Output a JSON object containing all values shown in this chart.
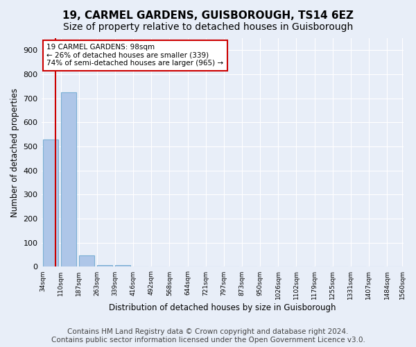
{
  "title": "19, CARMEL GARDENS, GUISBOROUGH, TS14 6EZ",
  "subtitle": "Size of property relative to detached houses in Guisborough",
  "xlabel": "Distribution of detached houses by size in Guisborough",
  "ylabel": "Number of detached properties",
  "bin_labels": [
    "34sqm",
    "110sqm",
    "187sqm",
    "263sqm",
    "339sqm",
    "416sqm",
    "492sqm",
    "568sqm",
    "644sqm",
    "721sqm",
    "797sqm",
    "873sqm",
    "950sqm",
    "1026sqm",
    "1102sqm",
    "1179sqm",
    "1255sqm",
    "1331sqm",
    "1407sqm",
    "1484sqm",
    "1560sqm"
  ],
  "bar_heights": [
    530,
    725,
    48,
    8,
    6,
    0,
    0,
    0,
    0,
    0,
    0,
    0,
    0,
    0,
    0,
    0,
    0,
    0,
    0,
    0
  ],
  "bar_color": "#aec6e8",
  "bar_edge_color": "#7aafd4",
  "property_sqm": 98,
  "bin_left_values": [
    34,
    110,
    187,
    263,
    339,
    416,
    492,
    568,
    644,
    721,
    797,
    873,
    950,
    1026,
    1102,
    1179,
    1255,
    1331,
    1407,
    1484
  ],
  "bin_right_values": [
    110,
    187,
    263,
    339,
    416,
    492,
    568,
    644,
    721,
    797,
    873,
    950,
    1026,
    1102,
    1179,
    1255,
    1331,
    1407,
    1484,
    1560
  ],
  "property_line_color": "#cc0000",
  "annotation_text": "19 CARMEL GARDENS: 98sqm\n← 26% of detached houses are smaller (339)\n74% of semi-detached houses are larger (965) →",
  "annotation_box_color": "#cc0000",
  "annotation_text_color": "#000000",
  "ylim": [
    0,
    950
  ],
  "yticks": [
    0,
    100,
    200,
    300,
    400,
    500,
    600,
    700,
    800,
    900
  ],
  "footer_text": "Contains HM Land Registry data © Crown copyright and database right 2024.\nContains public sector information licensed under the Open Government Licence v3.0.",
  "background_color": "#e8eef8",
  "plot_background_color": "#e8eef8",
  "grid_color": "#ffffff",
  "title_fontsize": 11,
  "subtitle_fontsize": 10,
  "footer_fontsize": 7.5
}
